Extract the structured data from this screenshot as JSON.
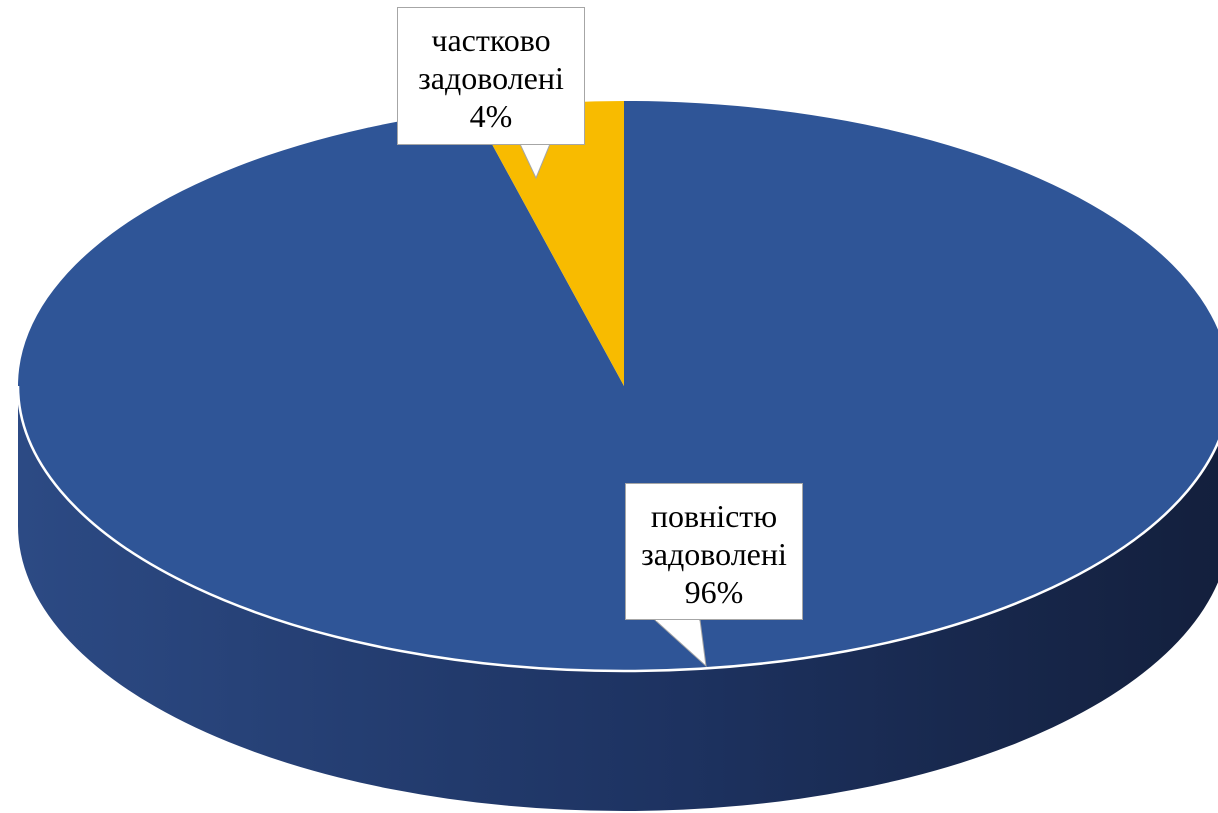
{
  "chart_data": {
    "type": "pie",
    "style": "3d",
    "title": "",
    "categories": [
      "повністю задоволені",
      "частково задоволені"
    ],
    "values": [
      96,
      4
    ],
    "unit": "%",
    "colors": [
      "#2f5597",
      "#f8bb00"
    ],
    "legend": "none",
    "data_labels": [
      {
        "category_lines": [
          "повністю",
          "задоволені"
        ],
        "value_text": "96%"
      },
      {
        "category_lines": [
          "частково",
          "задоволені"
        ],
        "value_text": "4%"
      }
    ]
  }
}
